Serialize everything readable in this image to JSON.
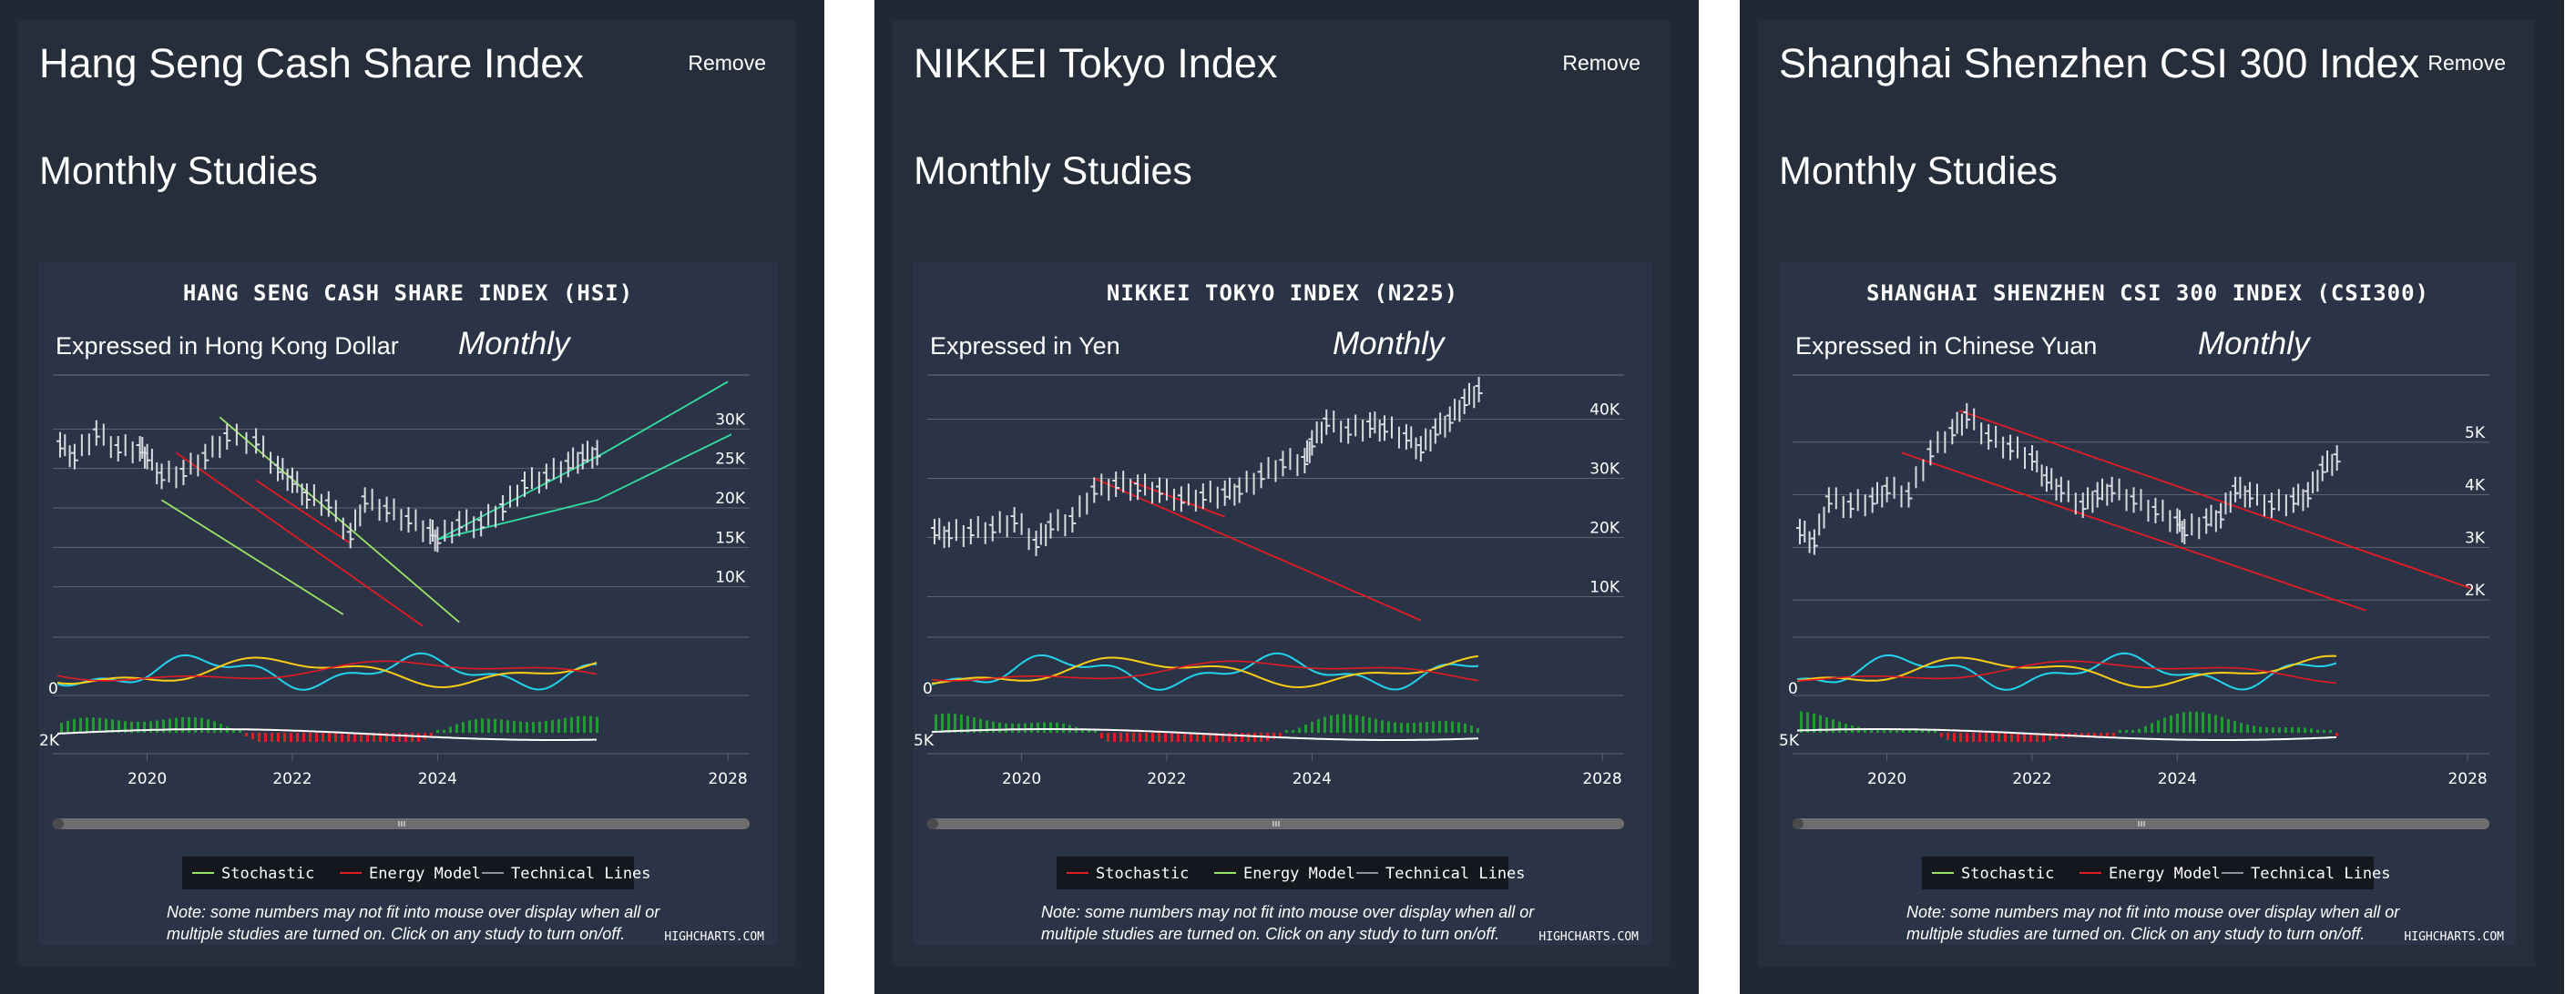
{
  "panels": [
    {
      "title": "Hang Seng Cash Share Index",
      "remove_label": "Remove",
      "subtitle": "Monthly Studies",
      "chart_data": {
        "type": "line",
        "title": "HANG SENG CASH SHARE INDEX (HSI)",
        "subtitle": "Expressed in Hong Kong Dollar",
        "period": "Monthly",
        "x_ticks": [
          "2020",
          "2022",
          "2024",
          "2028"
        ],
        "xlim": [
          2018.7,
          2028.3
        ],
        "ylim": [
          5000,
          35000
        ],
        "y_ticks": [
          10000,
          15000,
          20000,
          25000,
          30000
        ],
        "y_tick_labels": [
          "10K",
          "15K",
          "20K",
          "25K",
          "30K"
        ],
        "stochastic_label": "0",
        "energy_label": "2K",
        "series": [
          {
            "name": "Price",
            "x": [
              2018.8,
              2019.0,
              2019.3,
              2019.6,
              2019.9,
              2020.0,
              2020.2,
              2020.5,
              2020.8,
              2021.1,
              2021.5,
              2021.8,
              2022.0,
              2022.2,
              2022.5,
              2022.8,
              2023.0,
              2023.3,
              2023.6,
              2023.9,
              2024.0,
              2024.3,
              2024.6,
              2024.9,
              2025.2,
              2025.5,
              2025.8,
              2026.0,
              2026.2
            ],
            "y": [
              28000,
              26500,
              29500,
              27500,
              27500,
              26500,
              24000,
              24500,
              26500,
              29000,
              28500,
              25000,
              23500,
              21500,
              20500,
              16500,
              21000,
              19800,
              18500,
              17000,
              16000,
              18000,
              18000,
              20000,
              23000,
              24000,
              25500,
              26500,
              27000
            ]
          }
        ],
        "channels": [
          {
            "name": "green-upper",
            "color": "#9be564",
            "x": [
              2021.0,
              2024.3
            ],
            "y": [
              31500,
              5500
            ]
          },
          {
            "name": "green-lower",
            "color": "#9be564",
            "x": [
              2020.2,
              2022.7
            ],
            "y": [
              21000,
              6500
            ]
          },
          {
            "name": "red-upper",
            "color": "#e31b23",
            "x": [
              2020.4,
              2023.8
            ],
            "y": [
              27000,
              5000
            ]
          },
          {
            "name": "red-lower",
            "color": "#e31b23",
            "x": [
              2021.5,
              2022.8
            ],
            "y": [
              23500,
              15500
            ]
          },
          {
            "name": "teal-upper",
            "color": "#33e0a1",
            "x": [
              2024.0,
              2026.3,
              2028.0
            ],
            "y": [
              16000,
              27000,
              36000
            ]
          },
          {
            "name": "teal-lower",
            "color": "#33e0a1",
            "x": [
              2024.0,
              2026.2,
              2028.2
            ],
            "y": [
              16000,
              21000,
              30000
            ]
          }
        ],
        "legend": [
          {
            "label": "Stochastic",
            "color": "#9be564"
          },
          {
            "label": "Energy Model",
            "color": "#e31b23"
          },
          {
            "label": "Technical Lines",
            "color": "#8a93a0"
          }
        ],
        "note_line1": "Note: some numbers may not fit into mouse over display when all or",
        "note_line2": "multiple studies are turned on. Click on any study to turn on/off.",
        "credits": "HIGHCHARTS.COM"
      }
    },
    {
      "title": "NIKKEI Tokyo Index",
      "remove_label": "Remove",
      "subtitle": "Monthly Studies",
      "chart_data": {
        "type": "line",
        "title": "NIKKEI TOKYO INDEX (N225)",
        "subtitle": "Expressed in Yen",
        "period": "Monthly",
        "x_ticks": [
          "2020",
          "2022",
          "2024",
          "2028"
        ],
        "xlim": [
          2018.7,
          2028.3
        ],
        "ylim": [
          5000,
          45000
        ],
        "y_ticks": [
          10000,
          20000,
          30000,
          40000
        ],
        "y_tick_labels": [
          "10K",
          "20K",
          "30K",
          "40K"
        ],
        "stochastic_label": "0",
        "energy_label": "5K",
        "series": [
          {
            "name": "Price",
            "x": [
              2018.8,
              2019.0,
              2019.3,
              2019.6,
              2019.9,
              2020.2,
              2020.4,
              2020.7,
              2021.0,
              2021.3,
              2021.6,
              2021.9,
              2022.2,
              2022.5,
              2022.8,
              2023.0,
              2023.3,
              2023.6,
              2023.9,
              2024.0,
              2024.2,
              2024.5,
              2024.8,
              2025.0,
              2025.3,
              2025.5,
              2025.7,
              2025.9,
              2026.1,
              2026.3
            ],
            "y": [
              21000,
              20500,
              21000,
              21500,
              23000,
              19000,
              22000,
              23000,
              28000,
              29000,
              28500,
              28000,
              26500,
              27000,
              27500,
              28000,
              30500,
              32500,
              33000,
              36000,
              39500,
              38000,
              39000,
              38500,
              37000,
              35000,
              38000,
              40000,
              43000,
              45000
            ]
          }
        ],
        "channels": [
          {
            "name": "red-upper",
            "color": "#e31b23",
            "x": [
              2021.0,
              2025.5
            ],
            "y": [
              30000,
              6000
            ]
          },
          {
            "name": "red-lower",
            "color": "#e31b23",
            "x": [
              2021.5,
              2022.8
            ],
            "y": [
              29500,
              23500
            ]
          }
        ],
        "legend": [
          {
            "label": "Stochastic",
            "color": "#e31b23"
          },
          {
            "label": "Energy Model",
            "color": "#9be564"
          },
          {
            "label": "Technical Lines",
            "color": "#8a93a0"
          }
        ],
        "note_line1": "Note: some numbers may not fit into mouse over display when all or",
        "note_line2": "multiple studies are turned on. Click on any study to turn on/off.",
        "credits": "HIGHCHARTS.COM"
      }
    },
    {
      "title": "Shanghai Shenzhen CSI 300 Index",
      "remove_label": "Remove",
      "subtitle": "Monthly Studies",
      "chart_data": {
        "type": "line",
        "title": "SHANGHAI SHENZHEN CSI 300 INDEX (CSI300)",
        "subtitle": "Expressed in Chinese Yuan",
        "period": "Monthly",
        "x_ticks": [
          "2020",
          "2022",
          "2024",
          "2028"
        ],
        "xlim": [
          2018.7,
          2028.3
        ],
        "ylim": [
          1500,
          6000
        ],
        "y_ticks": [
          2000,
          3000,
          4000,
          5000
        ],
        "y_tick_labels": [
          "2K",
          "3K",
          "4K",
          "5K"
        ],
        "stochastic_label": "0",
        "energy_label": "5K",
        "series": [
          {
            "name": "Price",
            "x": [
              2018.8,
              2019.0,
              2019.2,
              2019.5,
              2019.8,
              2020.0,
              2020.3,
              2020.6,
              2020.9,
              2021.1,
              2021.4,
              2021.7,
              2022.0,
              2022.2,
              2022.4,
              2022.7,
              2022.9,
              2023.1,
              2023.4,
              2023.7,
              2024.0,
              2024.1,
              2024.4,
              2024.6,
              2024.8,
              2025.0,
              2025.3,
              2025.6,
              2025.8,
              2026.0,
              2026.2
            ],
            "y": [
              3300,
              3100,
              3900,
              3800,
              3900,
              4100,
              4000,
              4800,
              5200,
              5500,
              5100,
              4900,
              4700,
              4300,
              4100,
              3800,
              4000,
              4100,
              3900,
              3700,
              3500,
              3300,
              3500,
              3600,
              4100,
              4000,
              3800,
              3900,
              4000,
              4500,
              4700
            ]
          }
        ],
        "channels": [
          {
            "name": "red-upper",
            "color": "#e31b23",
            "x": [
              2021.0,
              2028.3
            ],
            "y": [
              5600,
              2100
            ]
          },
          {
            "name": "red-lower",
            "color": "#e31b23",
            "x": [
              2020.2,
              2026.6
            ],
            "y": [
              4800,
              1800
            ]
          }
        ],
        "legend": [
          {
            "label": "Stochastic",
            "color": "#9be564"
          },
          {
            "label": "Energy Model",
            "color": "#e31b23"
          },
          {
            "label": "Technical Lines",
            "color": "#8a93a0"
          }
        ],
        "note_line1": "Note: some numbers may not fit into mouse over display when all or",
        "note_line2": "multiple studies are turned on. Click on any study to turn on/off.",
        "credits": "HIGHCHARTS.COM"
      }
    }
  ]
}
